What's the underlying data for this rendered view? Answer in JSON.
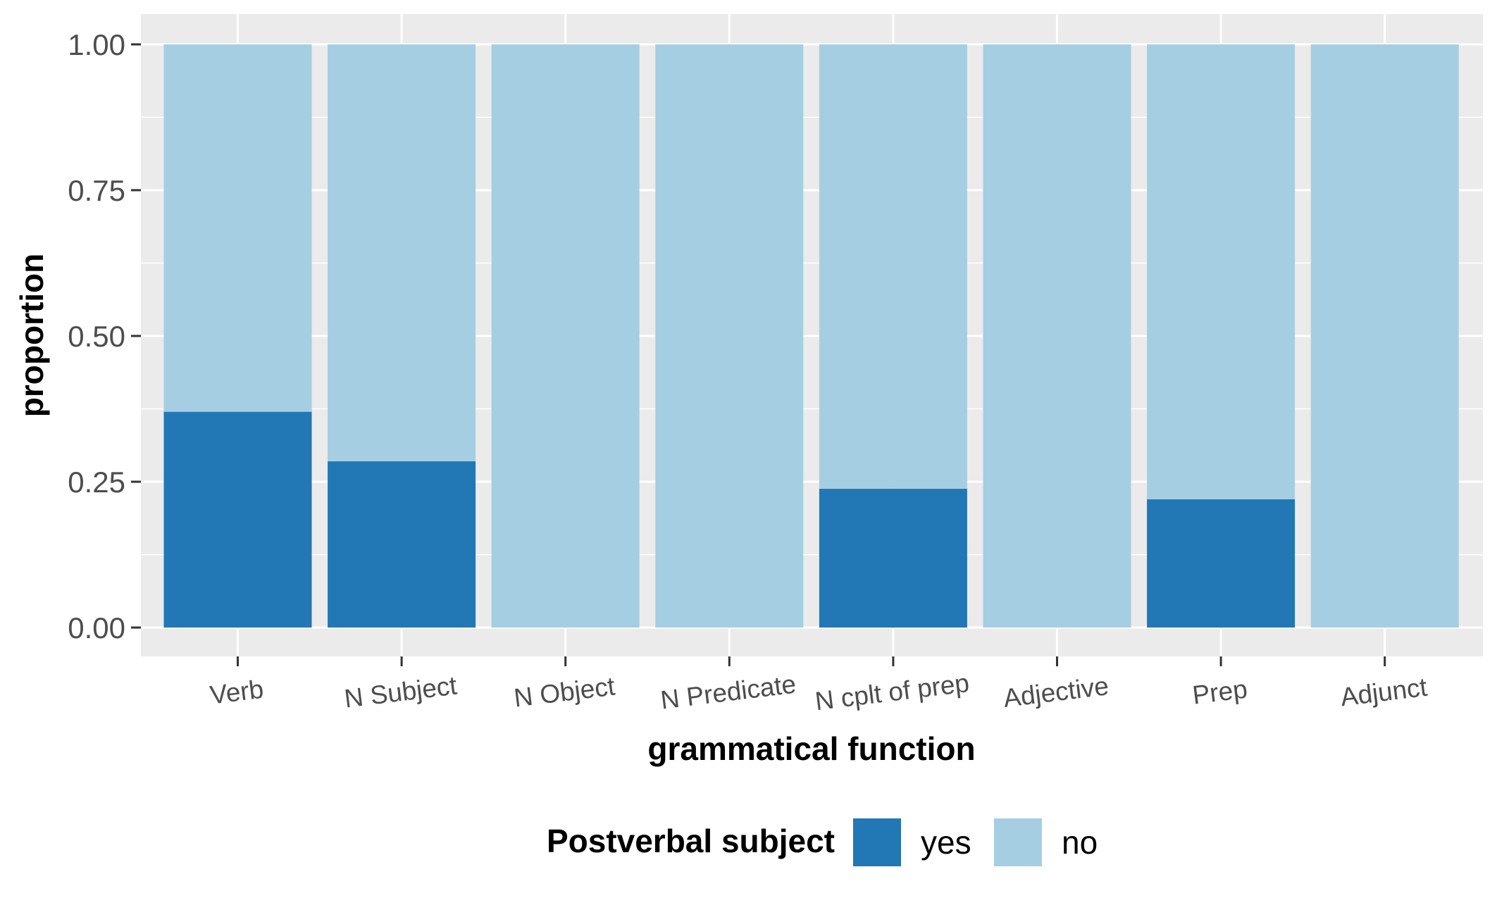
{
  "chart_data": {
    "type": "bar",
    "stacked": true,
    "categories": [
      "Verb",
      "N Subject",
      "N Object",
      "N Predicate",
      "N cplt of prep",
      "Adjective",
      "Prep",
      "Adjunct"
    ],
    "series": [
      {
        "name": "yes",
        "color": "#2178b4",
        "values": [
          0.37,
          0.285,
          0.0,
          0.0,
          0.238,
          0.0,
          0.22,
          0.0
        ]
      },
      {
        "name": "no",
        "color": "#a6cee3",
        "values": [
          0.63,
          0.715,
          1.0,
          1.0,
          0.762,
          1.0,
          0.78,
          1.0
        ]
      }
    ],
    "title": "",
    "xlabel": "grammatical function",
    "ylabel": "proportion",
    "ylim": [
      0,
      1
    ],
    "yticks": [
      "0.00",
      "0.25",
      "0.50",
      "0.75",
      "1.00"
    ],
    "grid": true,
    "legend": {
      "title": "Postverbal subject",
      "position": "bottom",
      "entries": [
        "yes",
        "no"
      ]
    },
    "panel_background": "#ebebeb",
    "grid_color": "#ffffff"
  }
}
